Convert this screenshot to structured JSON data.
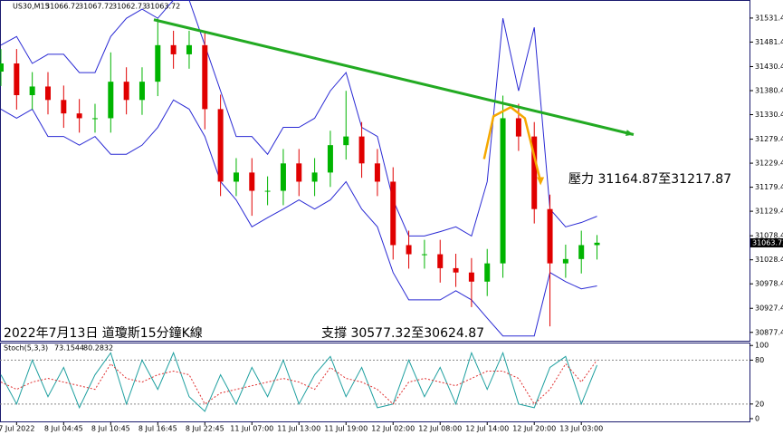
{
  "chart_data": {
    "type": "candlestick",
    "header": {
      "symbol": "US30,M15",
      "open": 31066.72,
      "high": 31067.72,
      "low": 31062.73,
      "close": 31063.72
    },
    "annotations": {
      "resistance": "壓力 31164.87至31217.87",
      "support": "支撐 30577.32至30624.87",
      "caption": "2022年7月13日 道瓊斯15分鐘K線"
    },
    "categories": [
      null,
      "7 Jul 2022",
      null,
      null,
      "8 Jul 04:45",
      null,
      null,
      "8 Jul 10:45",
      null,
      null,
      "8 Jul 16:45",
      null,
      null,
      "8 Jul 22:45",
      null,
      null,
      "11 Jul 07:00",
      null,
      null,
      "11 Jul 13:00",
      null,
      null,
      "11 Jul 19:00",
      null,
      null,
      "12 Jul 02:00",
      null,
      null,
      "12 Jul 08:00",
      null,
      null,
      "12 Jul 14:00",
      null,
      null,
      "12 Jul 20:00",
      null,
      null,
      "13 Jul 03:00",
      null
    ],
    "open": [
      31420,
      31437,
      31371,
      31389,
      31361,
      31333,
      31323,
      31323,
      31399,
      31361,
      31399,
      31475,
      31456,
      31475,
      31342,
      31191,
      31210,
      31172,
      31172,
      31229,
      31191,
      31210,
      31267,
      31285,
      31229,
      31191,
      31059,
      31040,
      31040,
      31011,
      31002,
      30983,
      31021,
      31323,
      31285,
      31134,
      31021,
      31030,
      31059
    ],
    "high": [
      31467,
      31467,
      31419,
      31419,
      31391,
      31363,
      31353,
      31460,
      31429,
      31429,
      31530,
      31505,
      31505,
      31505,
      31372,
      31240,
      31240,
      31202,
      31259,
      31259,
      31240,
      31297,
      31380,
      31315,
      31259,
      31221,
      31089,
      31070,
      31070,
      31041,
      31032,
      31051,
      31370,
      31353,
      31315,
      31164,
      31060,
      31089,
      31080
    ],
    "low": [
      31390,
      31341,
      31341,
      31331,
      31303,
      31293,
      31293,
      31293,
      31331,
      31330,
      31369,
      31426,
      31426,
      31300,
      31161,
      31161,
      31120,
      31142,
      31142,
      31161,
      31161,
      31180,
      31237,
      31199,
      31161,
      31029,
      31010,
      31010,
      30981,
      30972,
      30930,
      30953,
      30991,
      31255,
      31104,
      30890,
      30991,
      31000,
      31029
    ],
    "close": [
      31437,
      31371,
      31389,
      31361,
      31333,
      31323,
      31323,
      31399,
      31361,
      31399,
      31475,
      31456,
      31475,
      31342,
      31191,
      31210,
      31172,
      31172,
      31229,
      31191,
      31210,
      31267,
      31285,
      31229,
      31191,
      31059,
      31040,
      31040,
      31011,
      31002,
      30983,
      31021,
      31323,
      31285,
      31134,
      31021,
      31030,
      31059,
      31064
    ],
    "upper_band": [
      31475,
      31493,
      31437,
      31456,
      31456,
      31418,
      31418,
      31493,
      31531,
      31550,
      31531,
      31569,
      31569,
      31475,
      31380,
      31285,
      31285,
      31248,
      31304,
      31304,
      31323,
      31380,
      31418,
      31304,
      31285,
      31153,
      31078,
      31078,
      31087,
      31097,
      31078,
      31191,
      31531,
      31380,
      31512,
      31134,
      31097,
      31106,
      31119
    ],
    "lower_band": [
      31342,
      31323,
      31342,
      31285,
      31285,
      31267,
      31285,
      31248,
      31248,
      31267,
      31304,
      31361,
      31342,
      31285,
      31191,
      31153,
      31097,
      31116,
      31134,
      31153,
      31134,
      31153,
      31191,
      31134,
      31097,
      31002,
      30945,
      30945,
      30945,
      30964,
      30945,
      30907,
      30870,
      30870,
      30870,
      31002,
      30983,
      30968,
      30974
    ],
    "band_color": "#2a2ad4",
    "up_color": "#00b400",
    "down_color": "#e00000",
    "trendline": {
      "x": [
        9.75,
        40.33
      ],
      "values": [
        31528,
        31289
      ],
      "color": "#22aa22"
    },
    "orange_path": {
      "x": [
        30.8,
        31.4,
        32.5,
        33.4,
        34.4
      ],
      "values": [
        31238,
        31327,
        31346,
        31323,
        31191
      ],
      "color": "#f5a800"
    },
    "ylim": [
      30860,
      31569
    ],
    "yticks": [
      31531.44,
      31481.44,
      31430.44,
      31380.44,
      31330.44,
      31279.44,
      31229.44,
      31179.44,
      31129.44,
      31078.44,
      31028.44,
      30978.44,
      30927.44,
      30877.44
    ],
    "stoch": {
      "title": "Stoch(5,3,3)",
      "main_last": 73.1544,
      "signal_last": 80.2832,
      "main": [
        60,
        20,
        80,
        30,
        70,
        15,
        60,
        90,
        20,
        80,
        40,
        90,
        30,
        10,
        60,
        20,
        70,
        30,
        80,
        20,
        60,
        85,
        30,
        70,
        15,
        20,
        80,
        30,
        70,
        20,
        90,
        40,
        90,
        20,
        15,
        70,
        85,
        20,
        73.1544
      ],
      "signal": [
        50,
        40,
        50,
        55,
        50,
        45,
        40,
        75,
        55,
        50,
        60,
        65,
        60,
        20,
        35,
        40,
        45,
        50,
        55,
        50,
        40,
        70,
        55,
        50,
        40,
        20,
        50,
        55,
        50,
        45,
        55,
        65,
        65,
        55,
        20,
        40,
        75,
        50,
        80.2832
      ],
      "main_color": "#1fa0a0",
      "signal_color": "#e03030",
      "ylim": [
        -5,
        104
      ],
      "yticks": [
        100,
        80,
        20,
        0
      ]
    }
  }
}
